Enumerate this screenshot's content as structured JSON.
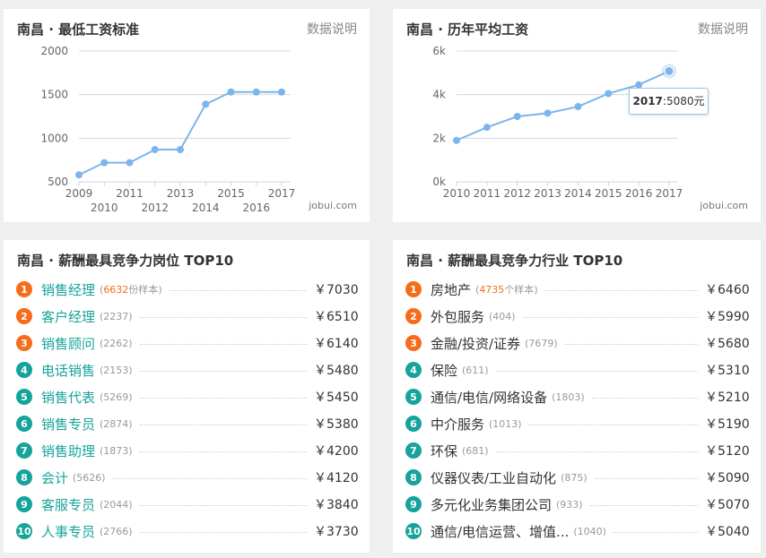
{
  "cards": {
    "min_wage": {
      "title": "南昌 · 最低工资标准",
      "link": "数据说明",
      "watermark": "jobui.com"
    },
    "avg_salary": {
      "title": "南昌 · 历年平均工资",
      "link": "数据说明",
      "watermark": "jobui.com"
    },
    "top_jobs": {
      "title": "南昌 · 薪酬最具竞争力岗位 TOP10"
    },
    "top_industries": {
      "title": "南昌 · 薪酬最具竞争力行业 TOP10"
    }
  },
  "tooltip": {
    "year": "2017",
    "value": ":5080元"
  },
  "chart_data": [
    {
      "type": "line",
      "title": "南昌 · 最低工资标准",
      "x": [
        "2009",
        "2010",
        "2011",
        "2012",
        "2013",
        "2014",
        "2015",
        "2016",
        "2017"
      ],
      "series": [
        {
          "values": [
            580,
            720,
            720,
            870,
            870,
            1390,
            1530,
            1530,
            1530
          ]
        }
      ],
      "ylim": [
        500,
        2000
      ],
      "yticks": [
        "500",
        "1000",
        "1500",
        "2000"
      ],
      "grid": true,
      "color": "#7cb5ec"
    },
    {
      "type": "line",
      "title": "南昌 · 历年平均工资",
      "x": [
        "2010",
        "2011",
        "2012",
        "2013",
        "2014",
        "2015",
        "2016",
        "2017"
      ],
      "series": [
        {
          "values": [
            1900,
            2500,
            3000,
            3150,
            3450,
            4050,
            4450,
            5080
          ]
        }
      ],
      "ylim": [
        0,
        6000
      ],
      "yticks": [
        "0k",
        "2k",
        "4k",
        "6k"
      ],
      "grid": true,
      "color": "#7cb5ec"
    }
  ],
  "top_jobs": [
    {
      "rank": "1",
      "name": "销售经理",
      "count": "6632",
      "count_suffix": "份样本",
      "salary": "￥7030"
    },
    {
      "rank": "2",
      "name": "客户经理",
      "count": "(2237)",
      "salary": "￥6510"
    },
    {
      "rank": "3",
      "name": "销售顾问",
      "count": "(2262)",
      "salary": "￥6140"
    },
    {
      "rank": "4",
      "name": "电话销售",
      "count": "(2153)",
      "salary": "￥5480"
    },
    {
      "rank": "5",
      "name": "销售代表",
      "count": "(5269)",
      "salary": "￥5450"
    },
    {
      "rank": "6",
      "name": "销售专员",
      "count": "(2874)",
      "salary": "￥5380"
    },
    {
      "rank": "7",
      "name": "销售助理",
      "count": "(1873)",
      "salary": "￥4200"
    },
    {
      "rank": "8",
      "name": "会计",
      "count": "(5626)",
      "salary": "￥4120"
    },
    {
      "rank": "9",
      "name": "客服专员",
      "count": "(2044)",
      "salary": "￥3840"
    },
    {
      "rank": "10",
      "name": "人事专员",
      "count": "(2766)",
      "salary": "￥3730"
    }
  ],
  "top_industries": [
    {
      "rank": "1",
      "name": "房地产",
      "count": "4735",
      "count_suffix": "个样本",
      "salary": "￥6460"
    },
    {
      "rank": "2",
      "name": "外包服务",
      "count": "(404)",
      "salary": "￥5990"
    },
    {
      "rank": "3",
      "name": "金融/投资/证券",
      "count": "(7679)",
      "salary": "￥5680"
    },
    {
      "rank": "4",
      "name": "保险",
      "count": "(611)",
      "salary": "￥5310"
    },
    {
      "rank": "5",
      "name": "通信/电信/网络设备",
      "count": "(1803)",
      "salary": "￥5210"
    },
    {
      "rank": "6",
      "name": "中介服务",
      "count": "(1013)",
      "salary": "￥5190"
    },
    {
      "rank": "7",
      "name": "环保",
      "count": "(681)",
      "salary": "￥5120"
    },
    {
      "rank": "8",
      "name": "仪器仪表/工业自动化",
      "count": "(875)",
      "salary": "￥5090"
    },
    {
      "rank": "9",
      "name": "多元化业务集团公司",
      "count": "(933)",
      "salary": "￥5070"
    },
    {
      "rank": "10",
      "name": "通信/电信运营、增值...",
      "count": "(1040)",
      "salary": "￥5040"
    }
  ]
}
